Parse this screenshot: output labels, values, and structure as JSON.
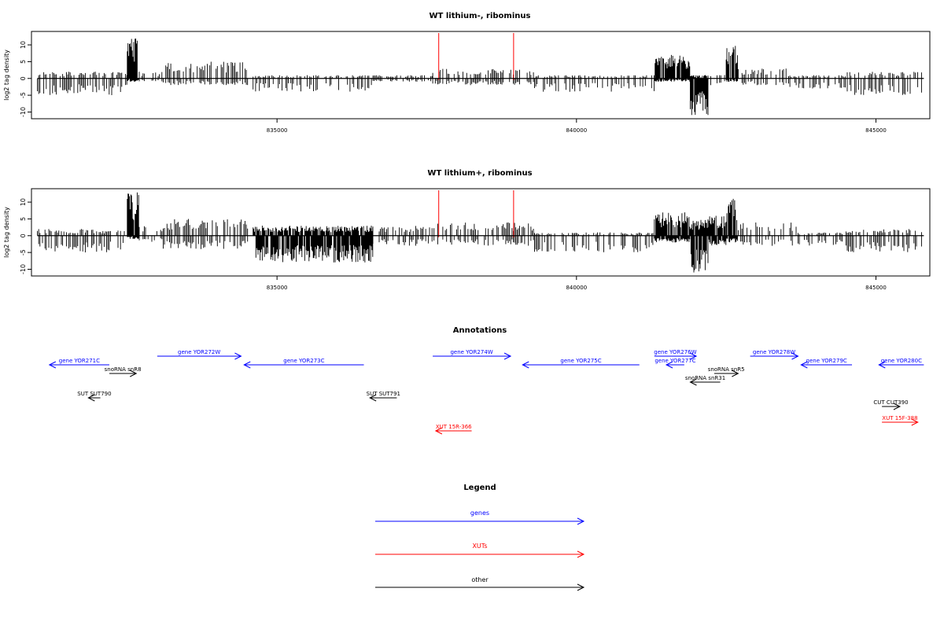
{
  "chart_data": [
    {
      "type": "bar",
      "title": "WT lithium-, ribominus",
      "ylabel": "log2 tag density",
      "xlabel": "",
      "xlim": [
        830900,
        845900
      ],
      "ylim": [
        -12,
        14
      ],
      "x_ticks": [
        835000,
        840000,
        845000
      ],
      "y_ticks": [
        10,
        5,
        0,
        -5,
        -10
      ],
      "grid": false,
      "description": "signed per-position log2 tag density; positive = forward strand, negative = reverse strand",
      "regions": [
        {
          "start": 831000,
          "end": 832500,
          "y": 2,
          "ylo": -5
        },
        {
          "start": 832500,
          "end": 832700,
          "y": 12,
          "ylo": -1
        },
        {
          "start": 832700,
          "end": 833100,
          "y": 2,
          "ylo": -1
        },
        {
          "start": 833100,
          "end": 834600,
          "y": 5,
          "ylo": -2
        },
        {
          "start": 834600,
          "end": 836600,
          "y": 1,
          "ylo": -4
        },
        {
          "start": 836600,
          "end": 837600,
          "y": 1,
          "ylo": -1
        },
        {
          "start": 837600,
          "end": 839300,
          "y": 3,
          "ylo": -2
        },
        {
          "start": 839300,
          "end": 841300,
          "y": 1,
          "ylo": -4
        },
        {
          "start": 841300,
          "end": 841900,
          "y": 7,
          "ylo": -1
        },
        {
          "start": 841900,
          "end": 842200,
          "y": 1,
          "ylo": -11
        },
        {
          "start": 842200,
          "end": 842500,
          "y": 1,
          "ylo": -2
        },
        {
          "start": 842500,
          "end": 842700,
          "y": 10,
          "ylo": -1
        },
        {
          "start": 842700,
          "end": 843500,
          "y": 3,
          "ylo": -2
        },
        {
          "start": 843500,
          "end": 844500,
          "y": 1,
          "ylo": -3
        },
        {
          "start": 844500,
          "end": 845800,
          "y": 2,
          "ylo": -5
        }
      ],
      "red_markers": [
        837700,
        838950
      ]
    },
    {
      "type": "bar",
      "title": "WT lithium+, ribominus",
      "ylabel": "log2 tag density",
      "xlabel": "",
      "xlim": [
        830900,
        845900
      ],
      "ylim": [
        -12,
        14
      ],
      "x_ticks": [
        835000,
        840000,
        845000
      ],
      "y_ticks": [
        10,
        5,
        0,
        -5,
        -10
      ],
      "grid": false,
      "description": "signed per-position log2 tag density; positive = forward strand, negative = reverse strand",
      "regions": [
        {
          "start": 831000,
          "end": 832500,
          "y": 2,
          "ylo": -5
        },
        {
          "start": 832500,
          "end": 832700,
          "y": 13,
          "ylo": -1
        },
        {
          "start": 832700,
          "end": 833100,
          "y": 3,
          "ylo": -2
        },
        {
          "start": 833100,
          "end": 834600,
          "y": 5,
          "ylo": -4
        },
        {
          "start": 834600,
          "end": 836600,
          "y": 3,
          "ylo": -8
        },
        {
          "start": 836600,
          "end": 837600,
          "y": 3,
          "ylo": -3
        },
        {
          "start": 837600,
          "end": 839300,
          "y": 4,
          "ylo": -3
        },
        {
          "start": 839300,
          "end": 841300,
          "y": 1,
          "ylo": -5
        },
        {
          "start": 841300,
          "end": 841900,
          "y": 7,
          "ylo": -2
        },
        {
          "start": 841900,
          "end": 842200,
          "y": 5,
          "ylo": -11
        },
        {
          "start": 842200,
          "end": 842500,
          "y": 6,
          "ylo": -3
        },
        {
          "start": 842500,
          "end": 842700,
          "y": 11,
          "ylo": -2
        },
        {
          "start": 842700,
          "end": 843700,
          "y": 4,
          "ylo": -3
        },
        {
          "start": 843700,
          "end": 844500,
          "y": 1,
          "ylo": -3
        },
        {
          "start": 844500,
          "end": 845800,
          "y": 2,
          "ylo": -5
        }
      ],
      "red_markers": [
        837700,
        838950
      ]
    }
  ],
  "annotations": {
    "title": "Annotations",
    "features": [
      {
        "label": "gene YOR271C",
        "category": "genes",
        "start": 832200,
        "end": 831200,
        "row": 2
      },
      {
        "label": "gene YOR272W",
        "category": "genes",
        "start": 833000,
        "end": 834400,
        "row": 1
      },
      {
        "label": "snoRNA snR8",
        "category": "other",
        "start": 832200,
        "end": 832650,
        "row": 3
      },
      {
        "label": "gene YOR273C",
        "category": "genes",
        "start": 836450,
        "end": 834450,
        "row": 2
      },
      {
        "label": "gene YOR274W",
        "category": "genes",
        "start": 837600,
        "end": 838900,
        "row": 1
      },
      {
        "label": "gene YOR275C",
        "category": "genes",
        "start": 841050,
        "end": 839100,
        "row": 2
      },
      {
        "label": "gene YOR276W",
        "category": "genes",
        "start": 841300,
        "end": 842000,
        "row": 1
      },
      {
        "label": "gene YOR277C",
        "category": "genes",
        "start": 841800,
        "end": 841500,
        "row": 2
      },
      {
        "label": "gene YOR278W",
        "category": "genes",
        "start": 842900,
        "end": 843700,
        "row": 1
      },
      {
        "label": "gene YOR279C",
        "category": "genes",
        "start": 844600,
        "end": 843750,
        "row": 2
      },
      {
        "label": "gene YOR280C",
        "category": "genes",
        "start": 845800,
        "end": 845050,
        "row": 2
      },
      {
        "label": "snoRNA snR5",
        "category": "other",
        "start": 842300,
        "end": 842700,
        "row": 3
      },
      {
        "label": "snoRNA snR31",
        "category": "other",
        "start": 842400,
        "end": 841900,
        "row": 4
      },
      {
        "label": "SUT SUT790",
        "category": "other",
        "start": 832050,
        "end": 831850,
        "row": 5
      },
      {
        "label": "SUT SUT791",
        "category": "other",
        "start": 837000,
        "end": 836550,
        "row": 5
      },
      {
        "label": "CUT CUT390",
        "category": "other",
        "start": 845100,
        "end": 845400,
        "row": 6
      },
      {
        "label": "XUT 15R-366",
        "category": "XUTs",
        "start": 838250,
        "end": 837650,
        "row": 7
      },
      {
        "label": "XUT 15F-388",
        "category": "XUTs",
        "start": 845100,
        "end": 845700,
        "row": 8
      }
    ]
  },
  "legend": {
    "title": "Legend",
    "items": [
      {
        "label": "genes",
        "color": "#0000ff"
      },
      {
        "label": "XUTs",
        "color": "#ff0000"
      },
      {
        "label": "other",
        "color": "#000000"
      }
    ]
  },
  "colors": {
    "genes": "#0000ff",
    "XUTs": "#ff0000",
    "other": "#000000",
    "marker": "#ff0000",
    "signal": "#000000"
  }
}
